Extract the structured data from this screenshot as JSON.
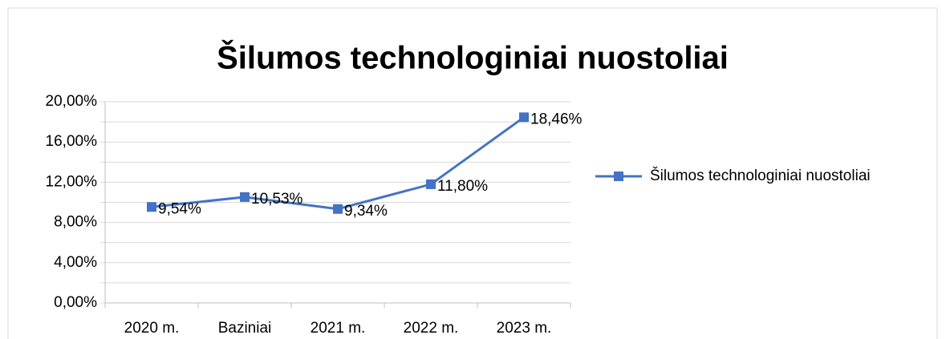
{
  "chart_data": {
    "type": "line",
    "title": "Šilumos technologiniai nuostoliai",
    "categories": [
      "2020 m.",
      "Baziniai",
      "2021 m.",
      "2022 m.",
      "2023 m."
    ],
    "series": [
      {
        "name": "Šilumos technologiniai nuostoliai",
        "color": "#4472c4",
        "values": [
          9.54,
          10.53,
          9.34,
          11.8,
          18.46
        ],
        "value_labels": [
          "9,54%",
          "10,53%",
          "9,34%",
          "11,80%",
          "18,46%"
        ]
      }
    ],
    "ylim": [
      0,
      20
    ],
    "yticks": [
      {
        "value": 0,
        "label": "0,00%"
      },
      {
        "value": 4,
        "label": "4,00%"
      },
      {
        "value": 8,
        "label": "8,00%"
      },
      {
        "value": 12,
        "label": "12,00%"
      },
      {
        "value": 16,
        "label": "16,00%"
      },
      {
        "value": 20,
        "label": "20,00%"
      }
    ],
    "yticks_minor": [
      2,
      6,
      10,
      14,
      18
    ],
    "grid": true,
    "legend": "right"
  }
}
